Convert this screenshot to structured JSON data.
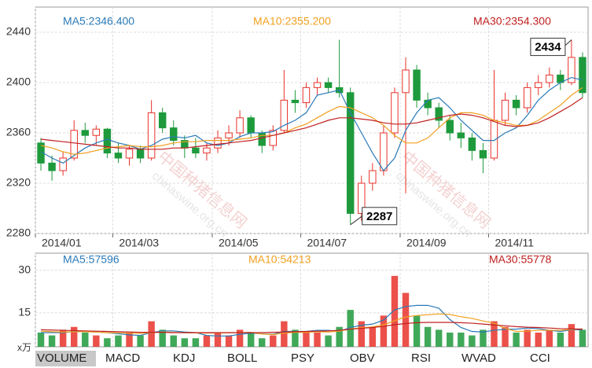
{
  "chart_data": [
    {
      "type": "candlestick",
      "categories": [
        "2014/01",
        null,
        null,
        null,
        null,
        null,
        null,
        "2014/03",
        null,
        null,
        null,
        null,
        null,
        null,
        null,
        null,
        "2014/05",
        null,
        null,
        null,
        null,
        null,
        null,
        null,
        "2014/07",
        null,
        null,
        null,
        null,
        null,
        null,
        null,
        null,
        "2014/09",
        null,
        null,
        null,
        null,
        null,
        null,
        null,
        "2014/11",
        null,
        null,
        null,
        null,
        null,
        null,
        null,
        null
      ],
      "open": [
        2352,
        2336,
        2330,
        2340,
        2362,
        2358,
        2363,
        2344,
        2340,
        2347,
        2340,
        2376,
        2364,
        2354,
        2348,
        2344,
        2348,
        2356,
        2360,
        2372,
        2360,
        2350,
        2362,
        2386,
        2384,
        2396,
        2400,
        2396,
        2392,
        2296,
        2320,
        2330,
        2360,
        2392,
        2410,
        2386,
        2380,
        2370,
        2360,
        2356,
        2346,
        2340,
        2370,
        2386,
        2380,
        2396,
        2400,
        2406,
        2400,
        2420
      ],
      "high": [
        2356,
        2342,
        2345,
        2370,
        2368,
        2366,
        2364,
        2352,
        2350,
        2350,
        2386,
        2380,
        2370,
        2358,
        2356,
        2352,
        2362,
        2366,
        2378,
        2374,
        2362,
        2366,
        2410,
        2394,
        2400,
        2404,
        2404,
        2434,
        2396,
        2326,
        2336,
        2366,
        2396,
        2420,
        2414,
        2392,
        2384,
        2374,
        2368,
        2360,
        2352,
        2410,
        2392,
        2390,
        2400,
        2406,
        2412,
        2410,
        2434,
        2424
      ],
      "low": [
        2330,
        2322,
        2326,
        2338,
        2352,
        2350,
        2340,
        2336,
        2334,
        2336,
        2338,
        2360,
        2350,
        2340,
        2340,
        2338,
        2344,
        2350,
        2356,
        2356,
        2344,
        2346,
        2360,
        2376,
        2380,
        2390,
        2392,
        2388,
        2287,
        2290,
        2314,
        2326,
        2356,
        2312,
        2380,
        2374,
        2364,
        2354,
        2348,
        2338,
        2328,
        2338,
        2366,
        2374,
        2376,
        2390,
        2396,
        2394,
        2398,
        2388
      ],
      "close": [
        2336,
        2330,
        2340,
        2362,
        2358,
        2363,
        2344,
        2340,
        2347,
        2340,
        2376,
        2364,
        2354,
        2348,
        2344,
        2348,
        2356,
        2360,
        2372,
        2360,
        2350,
        2362,
        2386,
        2384,
        2396,
        2400,
        2396,
        2392,
        2296,
        2320,
        2330,
        2360,
        2392,
        2410,
        2386,
        2380,
        2370,
        2360,
        2356,
        2346,
        2340,
        2370,
        2386,
        2380,
        2396,
        2400,
        2406,
        2400,
        2420,
        2392
      ],
      "up_color": "#e8322a",
      "down_color": "#1e9a3c",
      "series": [
        {
          "name": "MA5:2346.400",
          "color": "#2a7ab8",
          "values": [
            2345,
            2340,
            2336,
            2342,
            2348,
            2352,
            2355,
            2352,
            2350,
            2347,
            2350,
            2355,
            2357,
            2356,
            2358,
            2352,
            2350,
            2352,
            2357,
            2360,
            2360,
            2361,
            2366,
            2370,
            2376,
            2390,
            2392,
            2394,
            2376,
            2360,
            2344,
            2330,
            2340,
            2362,
            2376,
            2386,
            2388,
            2380,
            2370,
            2362,
            2354,
            2354,
            2360,
            2364,
            2374,
            2386,
            2394,
            2400,
            2404,
            2402
          ]
        },
        {
          "name": "MA10:2355.200",
          "color": "#f0a020",
          "values": [
            2350,
            2348,
            2345,
            2343,
            2344,
            2346,
            2348,
            2349,
            2350,
            2349,
            2349,
            2350,
            2352,
            2353,
            2353,
            2354,
            2354,
            2354,
            2355,
            2356,
            2358,
            2358,
            2360,
            2364,
            2367,
            2372,
            2377,
            2381,
            2380,
            2376,
            2372,
            2366,
            2358,
            2352,
            2352,
            2356,
            2364,
            2372,
            2376,
            2376,
            2374,
            2370,
            2368,
            2366,
            2366,
            2370,
            2376,
            2382,
            2390,
            2396
          ]
        },
        {
          "name": "MA30:2354.300",
          "color": "#c02020",
          "values": [
            2355,
            2354,
            2353,
            2352,
            2351,
            2350,
            2349,
            2348,
            2348,
            2347,
            2347,
            2347,
            2348,
            2348,
            2349,
            2350,
            2351,
            2352,
            2353,
            2354,
            2356,
            2358,
            2360,
            2362,
            2364,
            2367,
            2370,
            2372,
            2372,
            2371,
            2370,
            2368,
            2367,
            2367,
            2368,
            2370,
            2372,
            2374,
            2375,
            2374,
            2372,
            2369,
            2366,
            2365,
            2366,
            2368,
            2372,
            2377,
            2382,
            2388
          ]
        }
      ],
      "ylim": [
        2280,
        2460
      ],
      "yticks": [
        2280,
        2320,
        2360,
        2400,
        2440
      ],
      "grid": true,
      "annotations": [
        {
          "text": "2434",
          "index": 48,
          "at": "high"
        },
        {
          "text": "2287",
          "index": 28,
          "at": "low"
        }
      ]
    },
    {
      "type": "bar",
      "values": [
        8,
        7,
        9,
        10,
        8,
        7,
        6,
        7,
        8,
        7,
        12,
        9,
        7,
        6,
        6,
        7,
        8,
        7,
        9,
        8,
        6,
        7,
        12,
        9,
        8,
        8,
        7,
        10,
        16,
        12,
        10,
        14,
        28,
        22,
        14,
        10,
        9,
        8,
        8,
        7,
        9,
        12,
        10,
        8,
        9,
        8,
        9,
        8,
        11,
        9
      ],
      "series": [
        {
          "name": "MA5:57596",
          "color": "#2a7ab8",
          "values": [
            8,
            8,
            8,
            8.4,
            8.4,
            8.2,
            8,
            7.6,
            7.2,
            7,
            8,
            8.6,
            8.6,
            8.2,
            8,
            7,
            6.8,
            6.8,
            7.4,
            7.8,
            7.6,
            7.4,
            8.4,
            8.4,
            8.4,
            8.8,
            8.8,
            8.4,
            9.8,
            10.6,
            11,
            12.4,
            16,
            17.2,
            17.6,
            17.6,
            16.6,
            12.6,
            9.8,
            8.4,
            8.2,
            8.8,
            9.2,
            9.2,
            9.6,
            9.4,
            8.8,
            8.4,
            9,
            9
          ]
        },
        {
          "name": "MA10:54213",
          "color": "#f0a020",
          "values": [
            8.5,
            8.3,
            8.2,
            8.3,
            8.3,
            8.2,
            8,
            7.9,
            7.8,
            7.7,
            8,
            8.2,
            8.1,
            7.9,
            7.9,
            7.8,
            7.9,
            7.9,
            8,
            8.1,
            7.5,
            7.3,
            7.8,
            8.1,
            8.1,
            8.3,
            8.2,
            8.5,
            9.3,
            9.7,
            10,
            10.7,
            12.2,
            13.5,
            14,
            14.3,
            14.6,
            14.4,
            13.6,
            13,
            12.1,
            11.3,
            9.5,
            8.4,
            8.5,
            8.8,
            8.8,
            8.8,
            9.1,
            9.3
          ]
        },
        {
          "name": "MA30:55778",
          "color": "#c02020",
          "values": [
            9,
            8.9,
            8.8,
            8.7,
            8.6,
            8.5,
            8.4,
            8.3,
            8.2,
            8.1,
            8.1,
            8.1,
            8,
            8,
            8,
            8,
            8,
            8,
            8,
            8,
            8,
            8.1,
            8.2,
            8.3,
            8.4,
            8.5,
            8.6,
            8.8,
            9.2,
            9.5,
            9.8,
            10.2,
            10.8,
            11.2,
            11.5,
            11.6,
            11.6,
            11.6,
            11.5,
            11.3,
            11,
            10.7,
            10.4,
            10.1,
            9.9,
            9.8,
            9.6,
            9.4,
            9.3,
            9.2
          ]
        }
      ],
      "ylim": [
        3,
        36
      ],
      "yticks": [
        15,
        30
      ],
      "grid": true,
      "unit_label": "x万"
    }
  ],
  "watermark": [
    "中国种猪信息网",
    "chinaswine.org.cn"
  ],
  "tabs": [
    "VOLUME",
    "MACD",
    "KDJ",
    "BOLL",
    "PSY",
    "OBV",
    "RSI",
    "WVAD",
    "CCI"
  ]
}
